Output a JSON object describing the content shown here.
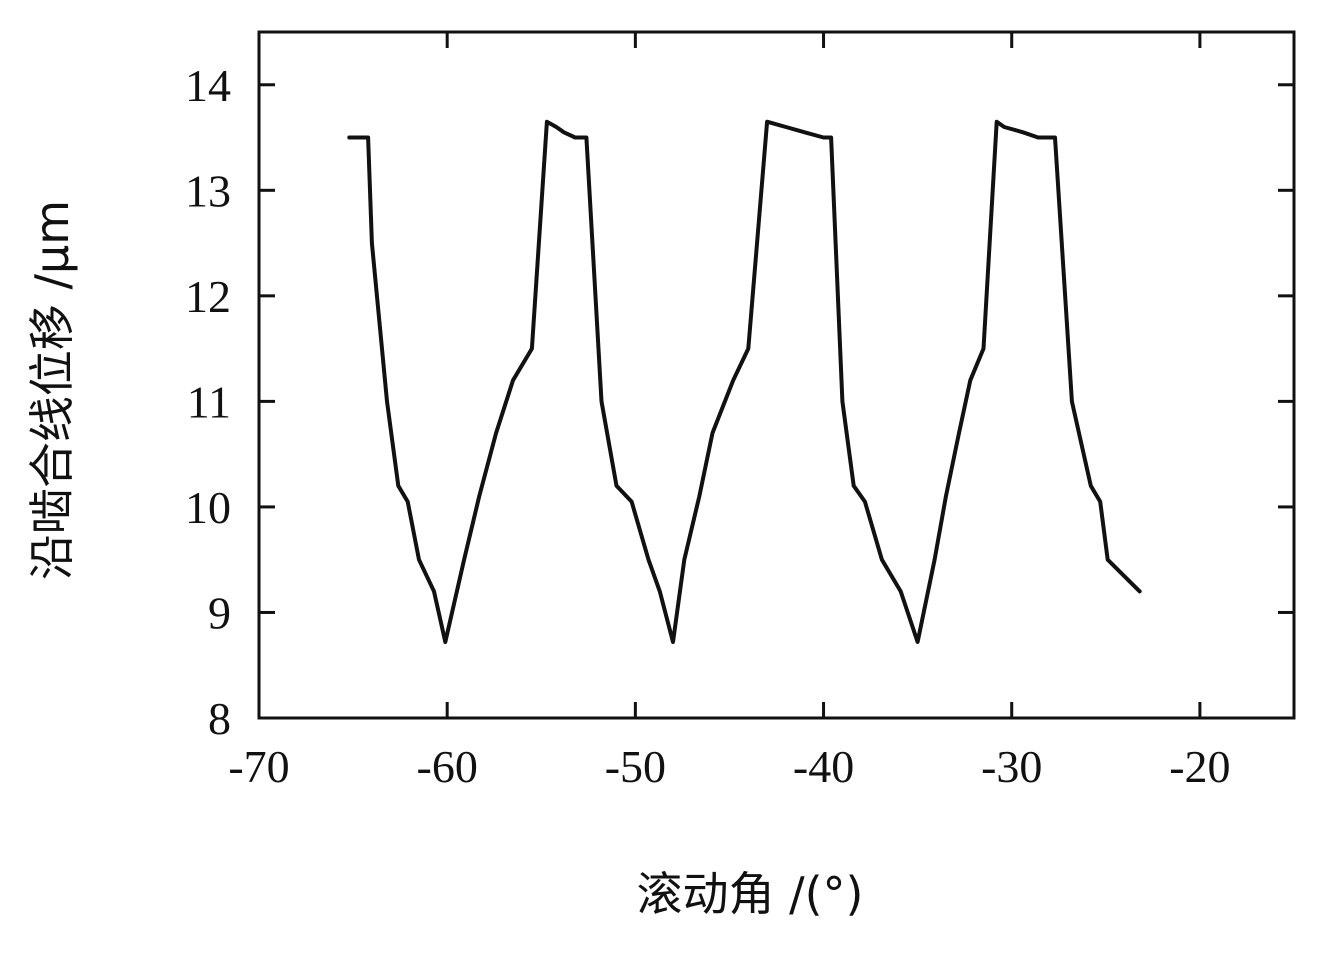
{
  "chart_data": {
    "type": "line",
    "xlabel": "滚动角 /(°)",
    "ylabel": "沿啮合线位移 /μm",
    "xlim": [
      -70,
      -15
    ],
    "ylim": [
      8,
      14.5
    ],
    "x_ticks": [
      -70,
      -60,
      -50,
      -40,
      -30,
      -20
    ],
    "y_ticks": [
      8,
      9,
      10,
      11,
      12,
      13,
      14
    ],
    "x_tick_labels": [
      "-70",
      "-60",
      "-50",
      "-40",
      "-30",
      "-20"
    ],
    "y_tick_labels": [
      "8",
      "9",
      "10",
      "11",
      "12",
      "13",
      "14"
    ],
    "grid": false,
    "line_color": "#111111",
    "series": [
      {
        "x": [
          -65.2,
          -64.2,
          -64.0,
          -63.2,
          -62.6,
          -62.1,
          -61.5,
          -60.7,
          -60.1,
          -59.1,
          -58.3,
          -57.4,
          -56.5,
          -55.5,
          -54.7,
          -54.2,
          -53.8,
          -53.2,
          -52.6,
          -51.8,
          -51.0,
          -50.2,
          -49.3,
          -48.7,
          -48.0,
          -47.4,
          -46.6,
          -45.9,
          -44.8,
          -44.0,
          -43.0,
          -42.0,
          -41.0,
          -40.0,
          -39.6,
          -39.0,
          -38.4,
          -37.8,
          -36.9,
          -35.9,
          -35.0,
          -34.1,
          -33.5,
          -32.8,
          -32.2,
          -31.5,
          -30.8,
          -30.4,
          -29.4,
          -28.6,
          -27.7,
          -26.8,
          -25.8,
          -25.3,
          -24.9,
          -23.2
        ],
        "y": [
          13.5,
          13.5,
          12.5,
          11.0,
          10.2,
          10.05,
          9.5,
          9.2,
          8.72,
          9.5,
          10.1,
          10.7,
          11.2,
          11.5,
          13.65,
          13.6,
          13.55,
          13.5,
          13.5,
          11.0,
          10.2,
          10.05,
          9.5,
          9.2,
          8.72,
          9.5,
          10.1,
          10.7,
          11.2,
          11.5,
          13.65,
          13.6,
          13.55,
          13.5,
          13.5,
          11.0,
          10.2,
          10.05,
          9.5,
          9.2,
          8.72,
          9.5,
          10.1,
          10.7,
          11.2,
          11.5,
          13.65,
          13.6,
          13.55,
          13.5,
          13.5,
          11.0,
          10.2,
          10.05,
          9.5,
          9.2
        ]
      }
    ]
  }
}
